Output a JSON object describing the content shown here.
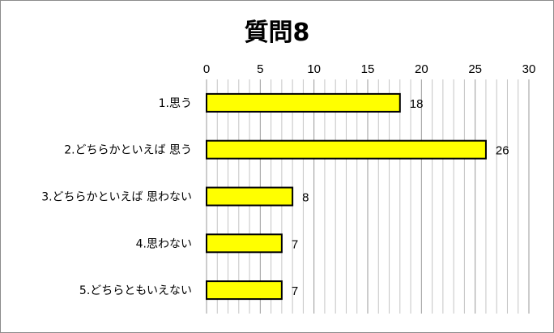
{
  "chart_data": {
    "type": "bar",
    "orientation": "horizontal",
    "title": "質問8",
    "categories": [
      "1.思う",
      "2.どちらかといえば 思う",
      "3.どちらかといえば 思わない",
      "4.思わない",
      "5.どちらともいえない"
    ],
    "values": [
      18,
      26,
      8,
      7,
      7
    ],
    "xlim": [
      0,
      30
    ],
    "major_ticks": [
      0,
      5,
      10,
      15,
      20,
      25,
      30
    ],
    "minor_tick_step": 1,
    "grid": true,
    "axis_position": "top",
    "legend": "none",
    "bar_color": "#ffff00",
    "bar_border_color": "#000000",
    "data_labels": true
  }
}
